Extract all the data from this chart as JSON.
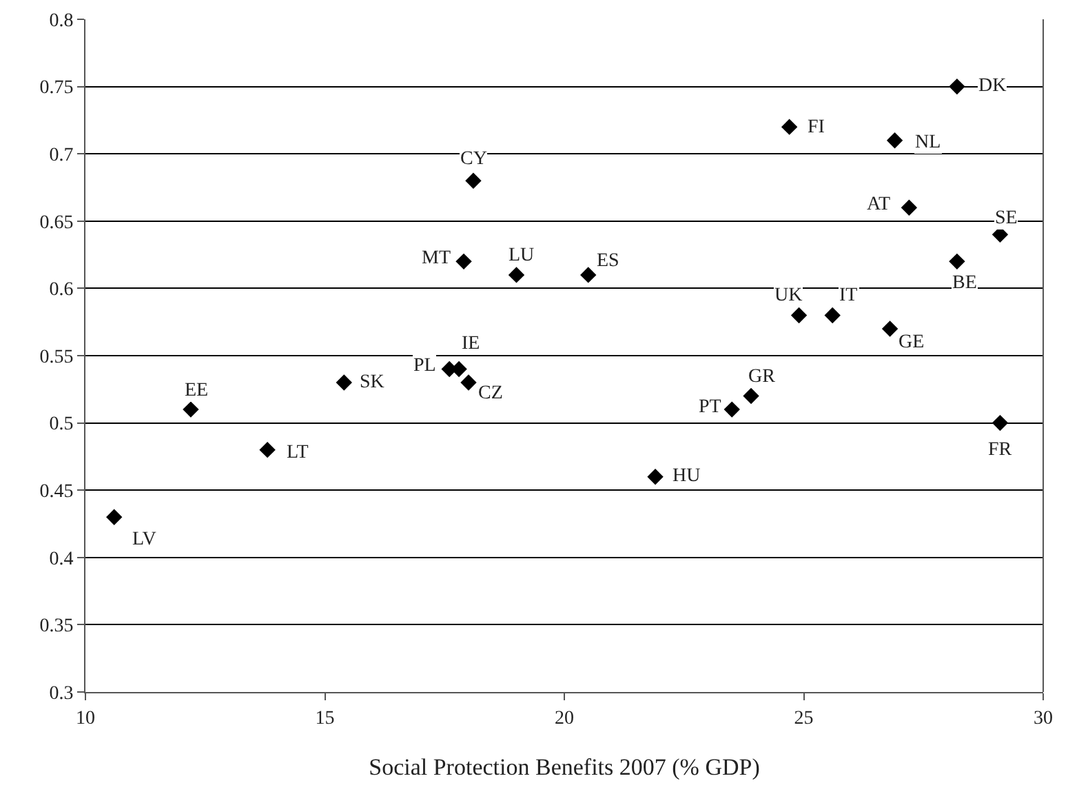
{
  "chart_data": {
    "type": "scatter",
    "xlabel": "Social Protection Benefits 2007 (% GDP)",
    "x": [
      28.2,
      24.7,
      26.9,
      27.2,
      29.1,
      28.2,
      24.9,
      25.6,
      26.8,
      23.9,
      23.5,
      29.1,
      21.9,
      18.1,
      17.9,
      19.0,
      20.5,
      17.6,
      17.8,
      18.0,
      15.4,
      12.2,
      13.8,
      10.6
    ],
    "series": [
      {
        "color": "#000000",
        "values": [
          0.75,
          0.72,
          0.71,
          0.66,
          0.64,
          0.62,
          0.58,
          0.58,
          0.57,
          0.52,
          0.51,
          0.5,
          0.46,
          0.68,
          0.62,
          0.61,
          0.61,
          0.54,
          0.54,
          0.53,
          0.53,
          0.51,
          0.48,
          0.43
        ]
      }
    ],
    "annotations": [
      {
        "text": "DK",
        "x": 28.2,
        "y": 0.75
      },
      {
        "text": "FI",
        "x": 24.7,
        "y": 0.72
      },
      {
        "text": "NL",
        "x": 26.9,
        "y": 0.71
      },
      {
        "text": "AT",
        "x": 27.2,
        "y": 0.66
      },
      {
        "text": "SE",
        "x": 29.1,
        "y": 0.64
      },
      {
        "text": "BE",
        "x": 28.2,
        "y": 0.62
      },
      {
        "text": "UK",
        "x": 24.9,
        "y": 0.58
      },
      {
        "text": "IT",
        "x": 25.6,
        "y": 0.58
      },
      {
        "text": "GE",
        "x": 26.8,
        "y": 0.57
      },
      {
        "text": "GR",
        "x": 23.9,
        "y": 0.52
      },
      {
        "text": "PT",
        "x": 23.5,
        "y": 0.51
      },
      {
        "text": "FR",
        "x": 29.1,
        "y": 0.5
      },
      {
        "text": "HU",
        "x": 21.9,
        "y": 0.46
      },
      {
        "text": "CY",
        "x": 18.1,
        "y": 0.68
      },
      {
        "text": "MT",
        "x": 17.9,
        "y": 0.62
      },
      {
        "text": "LU",
        "x": 19.0,
        "y": 0.61
      },
      {
        "text": "ES",
        "x": 20.5,
        "y": 0.61
      },
      {
        "text": "PL",
        "x": 17.6,
        "y": 0.54
      },
      {
        "text": "IE",
        "x": 17.8,
        "y": 0.54
      },
      {
        "text": "CZ",
        "x": 18.0,
        "y": 0.53
      },
      {
        "text": "SK",
        "x": 15.4,
        "y": 0.53
      },
      {
        "text": "EE",
        "x": 12.2,
        "y": 0.51
      },
      {
        "text": "LT",
        "x": 13.8,
        "y": 0.48
      },
      {
        "text": "LV",
        "x": 10.6,
        "y": 0.43
      }
    ],
    "xlim": [
      10,
      30
    ],
    "xticks": [
      10,
      15,
      20,
      25,
      30
    ],
    "ylim": [
      0.3,
      0.8
    ],
    "yticks": [
      0.3,
      0.35,
      0.4,
      0.45,
      0.5,
      0.55,
      0.6,
      0.65,
      0.7,
      0.75,
      0.8
    ],
    "grid": "y",
    "marker": "diamond"
  }
}
